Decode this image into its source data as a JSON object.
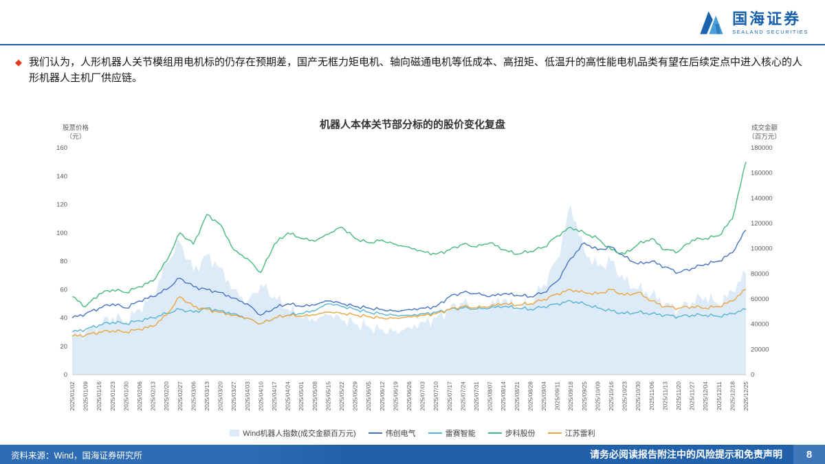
{
  "header": {
    "logo_title": "国海证券",
    "logo_subtitle": "SEALAND SECURITIES"
  },
  "bullet": {
    "marker": "◆",
    "text": "我们认为，人形机器人关节模组用电机标的仍存在预期差，国产无框力矩电机、轴向磁通电机等低成本、高扭矩、低温升的高性能电机品类有望在后续定点中进入核心的人形机器人主机厂供应链。"
  },
  "chart": {
    "title": "机器人本体关节部分标的的股价变化复盘",
    "left_axis_label_1": "股票价格",
    "left_axis_label_2": "（元）",
    "right_axis_label_1": "成交金额",
    "right_axis_label_2": "（百万元）"
  },
  "chart_data": {
    "type": "line",
    "title": "机器人本体关节部分标的的股价变化复盘",
    "legend_position": "bottom",
    "grid": false,
    "x": [
      "2025/01/02",
      "2025/01/09",
      "2025/01/16",
      "2025/01/23",
      "2025/01/30",
      "2025/02/06",
      "2025/02/13",
      "2025/02/20",
      "2025/02/27",
      "2025/03/06",
      "2025/03/13",
      "2025/03/20",
      "2025/03/27",
      "2025/04/03",
      "2025/04/10",
      "2025/04/17",
      "2025/04/24",
      "2025/05/01",
      "2025/05/08",
      "2025/05/15",
      "2025/05/22",
      "2025/05/29",
      "2025/06/05",
      "2025/06/12",
      "2025/06/19",
      "2025/06/26",
      "2025/07/03",
      "2025/07/10",
      "2025/07/17",
      "2025/07/24",
      "2025/07/31",
      "2025/08/07",
      "2025/08/14",
      "2025/08/21",
      "2025/08/28",
      "2025/09/04",
      "2025/09/11",
      "2025/09/18",
      "2025/09/25",
      "2025/10/09",
      "2025/10/16",
      "2025/10/23",
      "2025/10/30",
      "2025/11/06",
      "2025/11/13",
      "2025/11/20",
      "2025/11/27",
      "2025/12/04",
      "2025/12/11",
      "2025/12/18",
      "2025/12/25"
    ],
    "left_axis": {
      "label": "股票价格（元）",
      "min": 0,
      "max": 160,
      "tick_step": 20
    },
    "right_axis": {
      "label": "成交金额（百万元）",
      "min": 0,
      "max": 180000,
      "tick_step": 20000
    },
    "series": [
      {
        "name": "Wind机器人指数(成交金额百万元)",
        "type": "area",
        "axis": "right",
        "color": "#dbe9f8",
        "values": [
          30000,
          34000,
          40000,
          46000,
          42000,
          52000,
          62000,
          88000,
          105000,
          82000,
          95000,
          85000,
          68000,
          58000,
          72000,
          62000,
          52000,
          45000,
          42000,
          47000,
          43000,
          40000,
          38000,
          36000,
          35000,
          38000,
          42000,
          45000,
          52000,
          57000,
          50000,
          54000,
          60000,
          52000,
          57000,
          72000,
          92000,
          135000,
          98000,
          86000,
          90000,
          74000,
          68000,
          64000,
          56000,
          52000,
          58000,
          62000,
          55000,
          66000,
          80000
        ]
      },
      {
        "name": "伟创电气",
        "type": "line",
        "axis": "left",
        "color": "#4472c4",
        "values": [
          40,
          43,
          47,
          50,
          47,
          52,
          55,
          60,
          68,
          62,
          60,
          58,
          54,
          50,
          42,
          47,
          50,
          48,
          49,
          52,
          50,
          48,
          47,
          46,
          45,
          46,
          47,
          48,
          55,
          58,
          57,
          55,
          57,
          56,
          55,
          58,
          66,
          82,
          93,
          88,
          90,
          83,
          78,
          80,
          76,
          72,
          75,
          78,
          80,
          86,
          102
        ]
      },
      {
        "name": "雷赛智能",
        "type": "line",
        "axis": "left",
        "color": "#56b4d3",
        "values": [
          30,
          32,
          35,
          37,
          36,
          38,
          40,
          43,
          46,
          44,
          47,
          45,
          43,
          40,
          36,
          40,
          42,
          43,
          45,
          50,
          48,
          46,
          44,
          43,
          42,
          42,
          43,
          44,
          46,
          47,
          46,
          47,
          48,
          47,
          46,
          48,
          50,
          52,
          50,
          47,
          45,
          43,
          44,
          43,
          42,
          41,
          42,
          42,
          41,
          43,
          46
        ]
      },
      {
        "name": "步科股份",
        "type": "line",
        "axis": "left",
        "color": "#45b97c",
        "values": [
          55,
          48,
          57,
          60,
          58,
          62,
          66,
          80,
          100,
          92,
          113,
          106,
          88,
          82,
          72,
          92,
          100,
          96,
          94,
          99,
          104,
          96,
          93,
          95,
          92,
          90,
          87,
          85,
          88,
          92,
          90,
          93,
          88,
          85,
          87,
          90,
          98,
          104,
          100,
          96,
          88,
          85,
          92,
          96,
          88,
          87,
          95,
          96,
          98,
          110,
          150
        ]
      },
      {
        "name": "江苏雷利",
        "type": "line",
        "axis": "left",
        "color": "#eda43c",
        "values": [
          27,
          28,
          30,
          31,
          30,
          32,
          34,
          42,
          55,
          48,
          46,
          44,
          42,
          40,
          36,
          40,
          42,
          41,
          42,
          44,
          43,
          42,
          41,
          40,
          40,
          41,
          42,
          43,
          46,
          48,
          47,
          48,
          50,
          49,
          50,
          53,
          57,
          60,
          58,
          57,
          60,
          56,
          58,
          52,
          48,
          47,
          48,
          47,
          48,
          52,
          60
        ]
      }
    ]
  },
  "footer": {
    "source": "资料来源：Wind，国海证券研究所",
    "disclaimer": "请务必阅读报告附注中的风险提示和免责声明",
    "page": "8"
  }
}
